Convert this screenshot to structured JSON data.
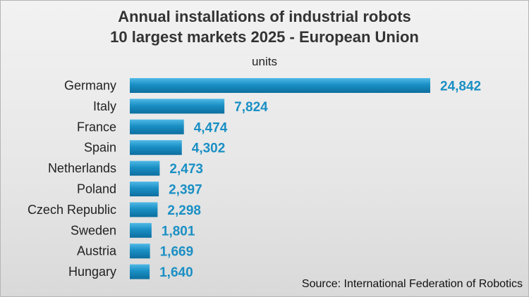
{
  "chart_data": {
    "type": "bar",
    "orientation": "horizontal",
    "title": "Annual installations of industrial robots",
    "subtitle": "10 largest markets 2025 - European Union",
    "unit_label": "units",
    "categories": [
      "Germany",
      "Italy",
      "France",
      "Spain",
      "Netherlands",
      "Poland",
      "Czech Republic",
      "Sweden",
      "Austria",
      "Hungary"
    ],
    "values": [
      24842,
      7824,
      4474,
      4302,
      2473,
      2397,
      2298,
      1801,
      1669,
      1640
    ],
    "value_labels": [
      "24,842",
      "7,824",
      "4,474",
      "4,302",
      "2,473",
      "2,397",
      "2,298",
      "1,801",
      "1,669",
      "1,640"
    ],
    "xlim": [
      0,
      24842
    ],
    "grid": false,
    "legend": "none",
    "bar_color": "#1a8fc4",
    "label_color": "#1a8fc4",
    "source": "Source: International Federation of Robotics"
  }
}
